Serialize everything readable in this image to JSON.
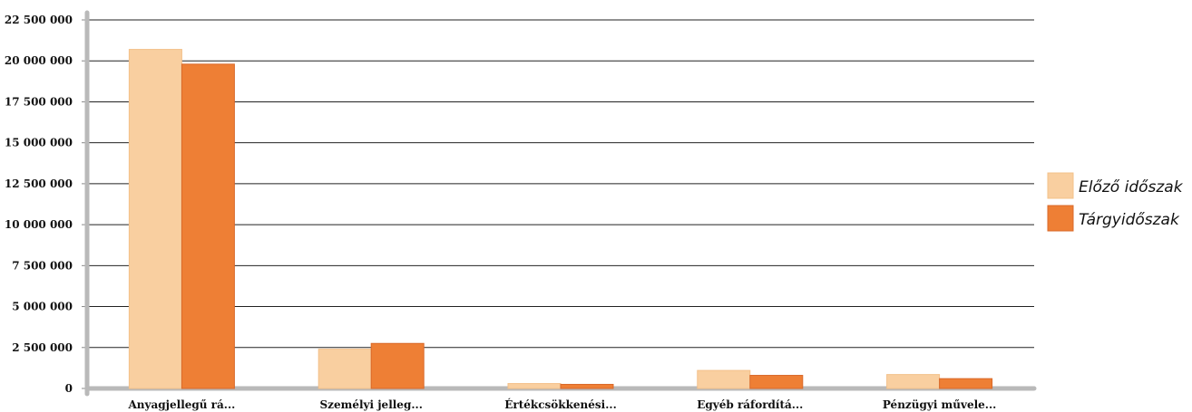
{
  "chart_data": {
    "type": "bar",
    "title": "",
    "xlabel": "",
    "ylabel": "",
    "ylim": [
      0,
      22500000
    ],
    "yticks": [
      0,
      2500000,
      5000000,
      7500000,
      10000000,
      12500000,
      15000000,
      17500000,
      20000000,
      22500000
    ],
    "ytick_labels": [
      "0",
      "2 500 000",
      "5 000 000",
      "7 500 000",
      "10 000 000",
      "12 500 000",
      "15 000 000",
      "17 500 000",
      "20 000 000",
      "22 500 000"
    ],
    "categories": [
      "Anyagjellegű rá...",
      "Személyi jelleg...",
      "Értékcsökkenési...",
      "Egyéb ráfordítá...",
      "Pénzügyi művele..."
    ],
    "series": [
      {
        "name": "Előző időszak",
        "color": "#f9cfa0",
        "values": [
          20700000,
          2400000,
          300000,
          1100000,
          850000
        ]
      },
      {
        "name": "Tárgyidőszak",
        "color": "#ee7f35",
        "values": [
          19800000,
          2750000,
          250000,
          800000,
          600000
        ]
      }
    ],
    "grid": true,
    "legend_position": "right"
  }
}
